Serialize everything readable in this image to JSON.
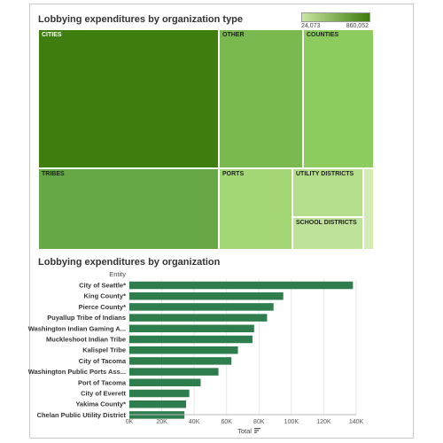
{
  "chart_data": [
    {
      "type": "treemap",
      "title": "Lobbying expenditures by organization type",
      "color_legend": {
        "min_label": "24,073",
        "max_label": "860,052",
        "color_low": "#c9e6a2",
        "color_high": "#3d7b0c"
      },
      "items": [
        {
          "name": "CITIES",
          "value": 860052,
          "color": "#3f7d0e"
        },
        {
          "name": "OTHER",
          "value": 330000,
          "color": "#7ab850"
        },
        {
          "name": "COUNTIES",
          "value": 320000,
          "color": "#8ccb5e"
        },
        {
          "name": "TRIBES",
          "value": 500000,
          "color": "#66a845"
        },
        {
          "name": "PORTS",
          "value": 120000,
          "color": "#a3d775"
        },
        {
          "name": "UTILITY DISTRICTS",
          "value": 95000,
          "color": "#b4de8a"
        },
        {
          "name": "SCHOOL DISTRICTS",
          "value": 60000,
          "color": "#bfe29a"
        },
        {
          "name": "",
          "value": 24073,
          "color": "#d2eab3"
        }
      ]
    },
    {
      "type": "bar",
      "orientation": "horizontal",
      "title": "Lobbying expenditures by organization",
      "ylabel": "Entity",
      "xlabel": "Total",
      "xlim": [
        0,
        140000
      ],
      "xticks": [
        "0K",
        "20K",
        "40K",
        "60K",
        "80K",
        "100K",
        "120K",
        "140K"
      ],
      "bar_color": "#2e7d4c",
      "categories": [
        "City of Seattle*",
        "King County*",
        "Pierce County*",
        "Puyallup Tribe of Indians",
        "Washington Indian Gaming A...",
        "Muckleshoot Indian Tribe",
        "Kalispel Tribe",
        "City of Tacoma",
        "Washington Public Ports Ass...",
        "Port of Tacoma",
        "City of Everett",
        "Yakima County*",
        "Chelan Public Utility District"
      ],
      "values": [
        138000,
        95000,
        89000,
        85000,
        77000,
        76000,
        67000,
        63000,
        55000,
        44000,
        37000,
        35000,
        34000
      ]
    }
  ]
}
